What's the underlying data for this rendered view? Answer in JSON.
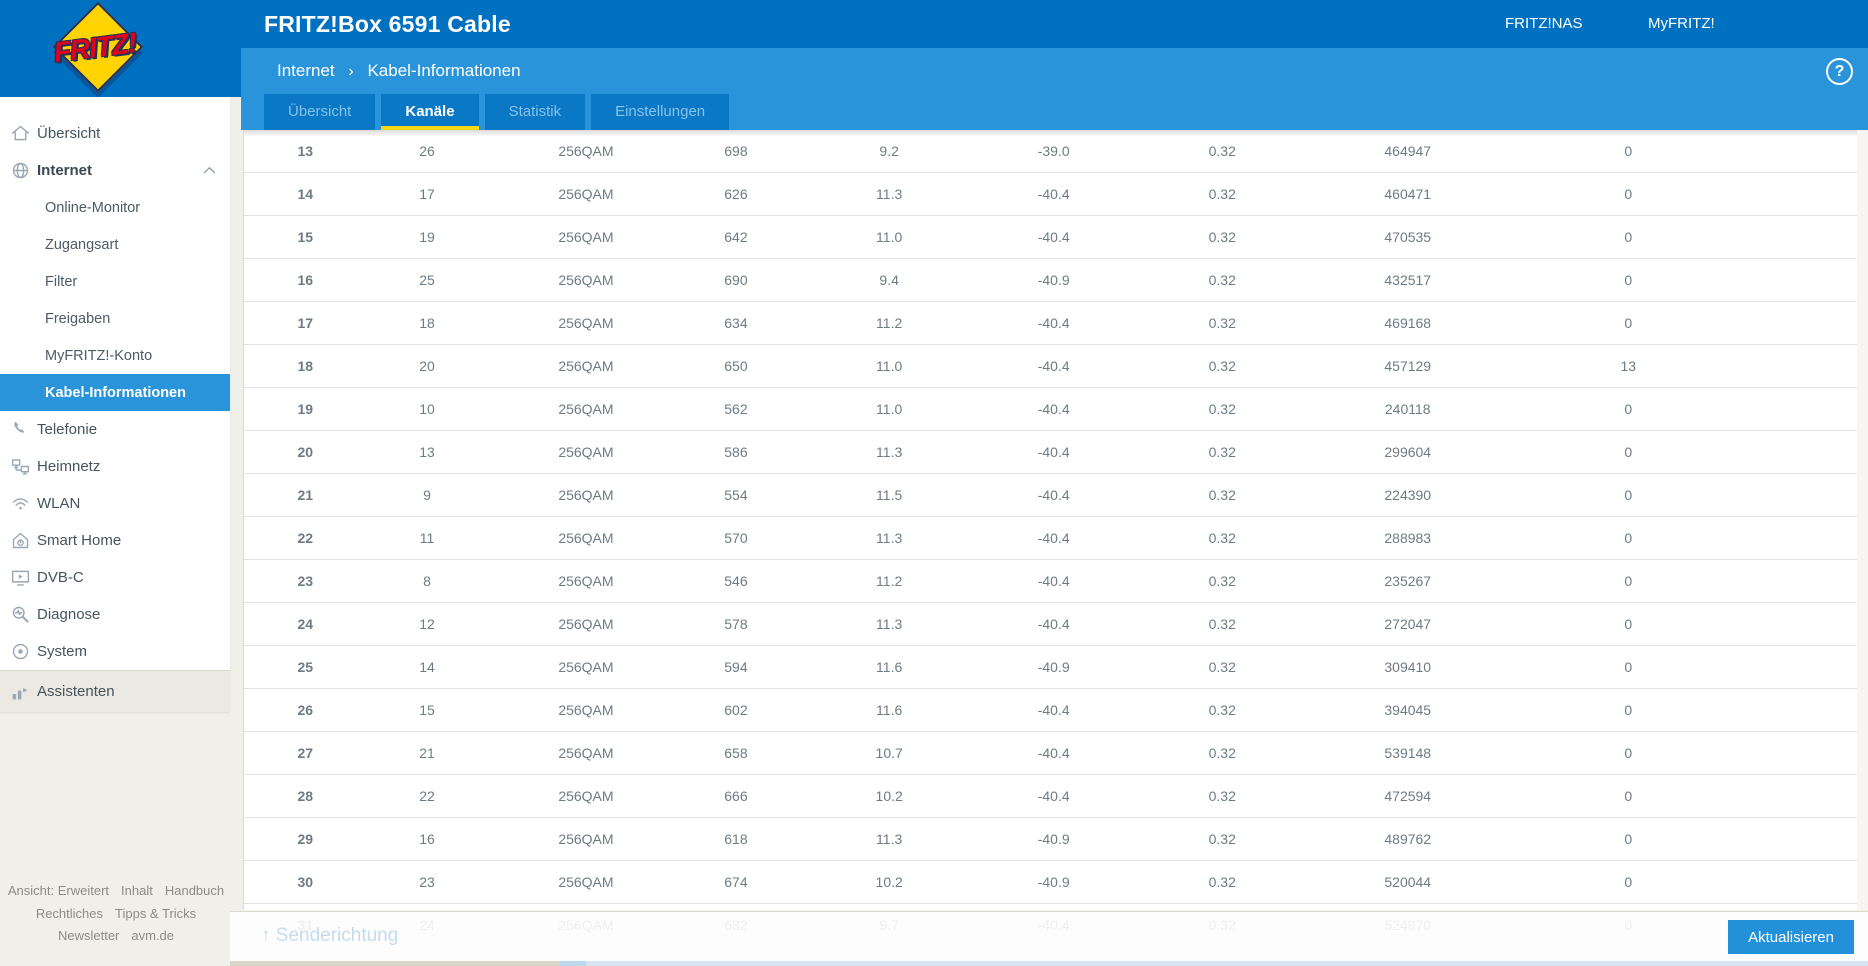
{
  "header": {
    "title": "FRITZ!Box 6591 Cable",
    "links": [
      "FRITZ!NAS",
      "MyFRITZ!"
    ]
  },
  "logo": {
    "text": "FRITZ!"
  },
  "breadcrumb": {
    "section": "Internet",
    "separator": "›",
    "page": "Kabel-Informationen"
  },
  "help_icon": "?",
  "tabs": [
    {
      "label": "Übersicht",
      "active": false
    },
    {
      "label": "Kanäle",
      "active": true
    },
    {
      "label": "Statistik",
      "active": false
    },
    {
      "label": "Einstellungen",
      "active": false
    }
  ],
  "sidebar": {
    "items": [
      {
        "label": "Übersicht",
        "icon": "home-icon",
        "type": "main"
      },
      {
        "label": "Internet",
        "icon": "globe-icon",
        "type": "main",
        "bold": true,
        "expanded": true
      },
      {
        "label": "Online-Monitor",
        "type": "sub"
      },
      {
        "label": "Zugangsart",
        "type": "sub"
      },
      {
        "label": "Filter",
        "type": "sub"
      },
      {
        "label": "Freigaben",
        "type": "sub"
      },
      {
        "label": "MyFRITZ!-Konto",
        "type": "sub"
      },
      {
        "label": "Kabel-Informationen",
        "type": "sub",
        "active": true
      },
      {
        "label": "Telefonie",
        "icon": "phone-icon",
        "type": "main"
      },
      {
        "label": "Heimnetz",
        "icon": "network-icon",
        "type": "main"
      },
      {
        "label": "WLAN",
        "icon": "wifi-icon",
        "type": "main"
      },
      {
        "label": "Smart Home",
        "icon": "smarthome-icon",
        "type": "main"
      },
      {
        "label": "DVB-C",
        "icon": "tv-icon",
        "type": "main"
      },
      {
        "label": "Diagnose",
        "icon": "diagnose-icon",
        "type": "main"
      },
      {
        "label": "System",
        "icon": "system-icon",
        "type": "main"
      },
      {
        "label": "Assistenten",
        "icon": "assistant-icon",
        "type": "main",
        "section": true
      }
    ],
    "footer_links": [
      [
        "Ansicht: Erweitert",
        "Inhalt",
        "Handbuch"
      ],
      [
        "Rechtliches",
        "Tipps & Tricks"
      ],
      [
        "Newsletter",
        "avm.de"
      ]
    ]
  },
  "table": {
    "rows": [
      [
        "13",
        "26",
        "256QAM",
        "698",
        "9.2",
        "-39.0",
        "0.32",
        "464947",
        "0"
      ],
      [
        "14",
        "17",
        "256QAM",
        "626",
        "11.3",
        "-40.4",
        "0.32",
        "460471",
        "0"
      ],
      [
        "15",
        "19",
        "256QAM",
        "642",
        "11.0",
        "-40.4",
        "0.32",
        "470535",
        "0"
      ],
      [
        "16",
        "25",
        "256QAM",
        "690",
        "9.4",
        "-40.9",
        "0.32",
        "432517",
        "0"
      ],
      [
        "17",
        "18",
        "256QAM",
        "634",
        "11.2",
        "-40.4",
        "0.32",
        "469168",
        "0"
      ],
      [
        "18",
        "20",
        "256QAM",
        "650",
        "11.0",
        "-40.4",
        "0.32",
        "457129",
        "13"
      ],
      [
        "19",
        "10",
        "256QAM",
        "562",
        "11.0",
        "-40.4",
        "0.32",
        "240118",
        "0"
      ],
      [
        "20",
        "13",
        "256QAM",
        "586",
        "11.3",
        "-40.4",
        "0.32",
        "299604",
        "0"
      ],
      [
        "21",
        "9",
        "256QAM",
        "554",
        "11.5",
        "-40.4",
        "0.32",
        "224390",
        "0"
      ],
      [
        "22",
        "11",
        "256QAM",
        "570",
        "11.3",
        "-40.4",
        "0.32",
        "288983",
        "0"
      ],
      [
        "23",
        "8",
        "256QAM",
        "546",
        "11.2",
        "-40.4",
        "0.32",
        "235267",
        "0"
      ],
      [
        "24",
        "12",
        "256QAM",
        "578",
        "11.3",
        "-40.4",
        "0.32",
        "272047",
        "0"
      ],
      [
        "25",
        "14",
        "256QAM",
        "594",
        "11.6",
        "-40.9",
        "0.32",
        "309410",
        "0"
      ],
      [
        "26",
        "15",
        "256QAM",
        "602",
        "11.6",
        "-40.4",
        "0.32",
        "394045",
        "0"
      ],
      [
        "27",
        "21",
        "256QAM",
        "658",
        "10.7",
        "-40.4",
        "0.32",
        "539148",
        "0"
      ],
      [
        "28",
        "22",
        "256QAM",
        "666",
        "10.2",
        "-40.4",
        "0.32",
        "472594",
        "0"
      ],
      [
        "29",
        "16",
        "256QAM",
        "618",
        "11.3",
        "-40.9",
        "0.32",
        "489762",
        "0"
      ],
      [
        "30",
        "23",
        "256QAM",
        "674",
        "10.2",
        "-40.9",
        "0.32",
        "520044",
        "0"
      ],
      [
        "31",
        "24",
        "256QAM",
        "682",
        "9.7",
        "-40.4",
        "0.32",
        "524870",
        "0"
      ]
    ]
  },
  "bottom": {
    "section_heading": "↑ Senderichtung",
    "refresh_label": "Aktualisieren"
  },
  "colors": {
    "header_blue": "#0070c1",
    "panel_blue": "#2994da",
    "tab_blue": "#0a78c4",
    "accent_yellow": "#f9d616",
    "button_blue": "#2391d9",
    "logo_yellow": "#ffd400",
    "logo_red": "#e2001a",
    "page_beige": "#f0efe9"
  }
}
